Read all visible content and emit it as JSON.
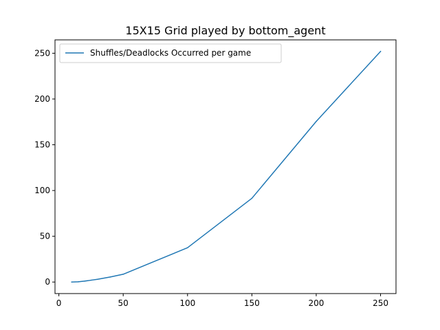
{
  "chart_data": {
    "type": "line",
    "title": "15X15 Grid played by bottom_agent",
    "xlabel": "",
    "ylabel": "",
    "xlim": [
      -3,
      262
    ],
    "ylim": [
      -12.6,
      264.6
    ],
    "xticks": [
      0,
      50,
      100,
      150,
      200,
      250
    ],
    "yticks": [
      0,
      50,
      100,
      150,
      200,
      250
    ],
    "grid": false,
    "legend_position": "upper-left",
    "series": [
      {
        "name": "Shuffles/Deadlocks Occurred per game",
        "color": "#1f77b4",
        "x": [
          10,
          15,
          20,
          25,
          30,
          40,
          50,
          100,
          150,
          200,
          250
        ],
        "y": [
          0,
          0.3,
          1,
          2,
          3,
          5.5,
          8.5,
          37.5,
          91.5,
          175.5,
          252
        ]
      }
    ]
  }
}
